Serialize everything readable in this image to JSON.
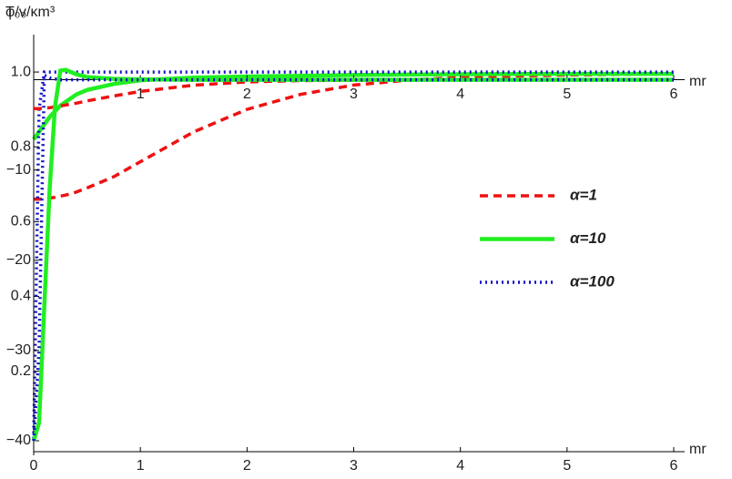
{
  "chart_data": [
    {
      "type": "line",
      "ylabel": "φ/v",
      "xlabel": "mr",
      "x": [
        0,
        0.05,
        0.1,
        0.15,
        0.2,
        0.25,
        0.3,
        0.4,
        0.5,
        0.75,
        1,
        1.5,
        2,
        2.5,
        3,
        3.5,
        4,
        5,
        6
      ],
      "xlim": [
        0,
        6
      ],
      "xticks": [
        0,
        1,
        2,
        3,
        4,
        5,
        6
      ],
      "ylim": [
        -0.02,
        1.1
      ],
      "yticks": [
        0.2,
        0.4,
        0.6,
        0.8,
        {
          "value": 1.0,
          "label": "1.0"
        }
      ],
      "legend": "right",
      "series": [
        {
          "name": "α=1",
          "color": "#ee1111",
          "style": "dashed",
          "values": [
            0.66,
            0.66,
            0.661,
            0.663,
            0.665,
            0.668,
            0.671,
            0.679,
            0.69,
            0.72,
            0.76,
            0.84,
            0.9,
            0.94,
            0.965,
            0.978,
            0.986,
            0.992,
            0.995
          ]
        },
        {
          "name": "α=10",
          "color": "#22ee22",
          "style": "solid",
          "values": [
            0.82,
            0.84,
            0.86,
            0.88,
            0.895,
            0.91,
            0.92,
            0.94,
            0.952,
            0.968,
            0.978,
            0.985,
            0.988,
            0.99,
            0.992,
            0.993,
            0.994,
            0.995,
            0.995
          ]
        },
        {
          "name": "α=100",
          "color": "#1111cc",
          "style": "dotted",
          "values": [
            0.02,
            0.9,
            1.0,
            1.0,
            1.0,
            1.0,
            1.0,
            1.0,
            1.0,
            1.0,
            1.0,
            1.0,
            1.0,
            1.0,
            1.0,
            1.0,
            1.0,
            1.0,
            1.0
          ]
        }
      ]
    },
    {
      "type": "line",
      "ylabel": "T₀₀/κm³",
      "xlabel": "mr",
      "x": [
        0,
        0.05,
        0.1,
        0.15,
        0.2,
        0.25,
        0.3,
        0.4,
        0.5,
        0.75,
        1,
        1.5,
        2,
        2.5,
        3,
        3.5,
        4,
        5,
        6
      ],
      "xlim": [
        0,
        6
      ],
      "xticks": [
        1,
        2,
        3,
        4,
        5,
        6
      ],
      "ylim": [
        -40,
        5
      ],
      "yticks": [
        {
          "value": -10,
          "label": "−10"
        },
        {
          "value": -20,
          "label": "−20"
        },
        {
          "value": -30,
          "label": "−30"
        },
        {
          "value": -40,
          "label": "−40"
        }
      ],
      "series": [
        {
          "color": "#ee1111",
          "style": "dashed",
          "values": [
            -3.2,
            -3.2,
            -3.15,
            -3.1,
            -3.0,
            -2.9,
            -2.8,
            -2.6,
            -2.35,
            -1.8,
            -1.3,
            -0.6,
            -0.25,
            -0.1,
            -0.04,
            -0.02,
            -0.01,
            0,
            0
          ]
        },
        {
          "color": "#22ee22",
          "style": "solid",
          "values": [
            -40,
            -38,
            -25,
            -12,
            -3,
            1.0,
            1.1,
            0.6,
            0.3,
            0.1,
            0.05,
            0,
            0,
            0,
            0,
            0,
            0,
            0,
            0
          ]
        },
        {
          "color": "#1111cc",
          "style": "dotted",
          "values": [
            -40,
            -30,
            0.5,
            0.2,
            0.1,
            0,
            0,
            0,
            0,
            0,
            0,
            0,
            0,
            0,
            0,
            0,
            0,
            0,
            0
          ]
        }
      ]
    }
  ]
}
